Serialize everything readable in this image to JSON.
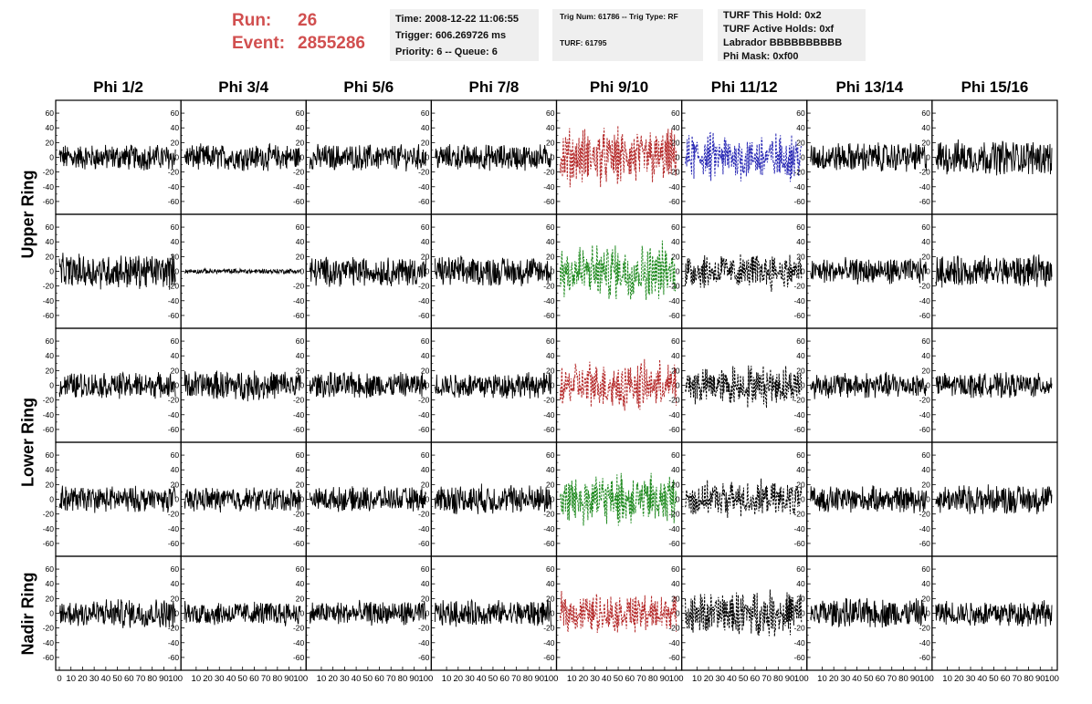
{
  "header": {
    "run_label": "Run:",
    "run_value": "26",
    "event_label": "Event:",
    "event_value": "2855286",
    "info1": [
      "Time: 2008-12-22 11:06:55",
      "Trigger: 606.269726 ms",
      "Priority: 6 -- Queue: 6"
    ],
    "info2": [
      "Trig Num: 61786 -- Trig Type: RF",
      "TURF: 61795"
    ],
    "info3": [
      "TURF This Hold: 0x2",
      "TURF Active Holds: 0xf",
      "Labrador BBBBBBBBBB",
      "Phi Mask: 0xf00"
    ]
  },
  "chart_data": {
    "type": "line",
    "columns": [
      "Phi 1/2",
      "Phi 3/4",
      "Phi 5/6",
      "Phi 7/8",
      "Phi 9/10",
      "Phi 11/12",
      "Phi 13/14",
      "Phi 15/16"
    ],
    "rows": [
      "Upper Ring",
      "Upper Ring",
      "Lower Ring",
      "Lower Ring",
      "Nadir Ring"
    ],
    "row_labels": [
      {
        "text": "Upper Ring",
        "rows": [
          0,
          1
        ]
      },
      {
        "text": "Lower Ring",
        "rows": [
          2,
          3
        ]
      },
      {
        "text": "Nadir Ring",
        "rows": [
          4
        ]
      }
    ],
    "y_ticks": [
      -60,
      -40,
      -20,
      0,
      20,
      40,
      60
    ],
    "y_tick_labels": [
      "-60",
      "-40",
      "-20",
      "0",
      "20",
      "40",
      "60"
    ],
    "ylim": [
      -70,
      70
    ],
    "xlim": [
      0,
      100
    ],
    "x_tick_labels": [
      "0",
      "10",
      "20",
      "30",
      "40",
      "50",
      "60",
      "70",
      "80",
      "90",
      "100"
    ],
    "x_tick_labels_mid": [
      "10",
      "20",
      "30",
      "40",
      "50",
      "60",
      "70",
      "80",
      "90",
      "100"
    ],
    "trace_style": {
      "solid": "#000000",
      "dashed_red": "#b52a2a",
      "dashed_blue": "#2a2ab5",
      "dashed_green": "#1f8a1f",
      "dashed_black": "#000000"
    },
    "panels": [
      [
        "solid",
        "solid",
        "solid",
        "solid",
        "dashed_red",
        "dashed_blue",
        "solid",
        "solid"
      ],
      [
        "solid",
        "solid",
        "solid",
        "solid",
        "dashed_green",
        "dashed_black",
        "solid",
        "solid"
      ],
      [
        "solid",
        "solid",
        "solid",
        "solid",
        "dashed_red",
        "dashed_black",
        "solid",
        "solid"
      ],
      [
        "solid",
        "solid",
        "solid",
        "solid",
        "dashed_green",
        "dashed_black",
        "solid",
        "solid"
      ],
      [
        "solid",
        "solid",
        "solid",
        "solid",
        "dashed_red",
        "dashed_black",
        "solid",
        "solid"
      ]
    ],
    "amplitude": [
      [
        15,
        15,
        15,
        15,
        35,
        30,
        17,
        20
      ],
      [
        20,
        3,
        17,
        17,
        35,
        22,
        15,
        18
      ],
      [
        15,
        17,
        15,
        15,
        30,
        25,
        15,
        14
      ],
      [
        15,
        14,
        14,
        17,
        32,
        22,
        15,
        17
      ],
      [
        17,
        14,
        14,
        15,
        25,
        28,
        17,
        15
      ]
    ]
  }
}
